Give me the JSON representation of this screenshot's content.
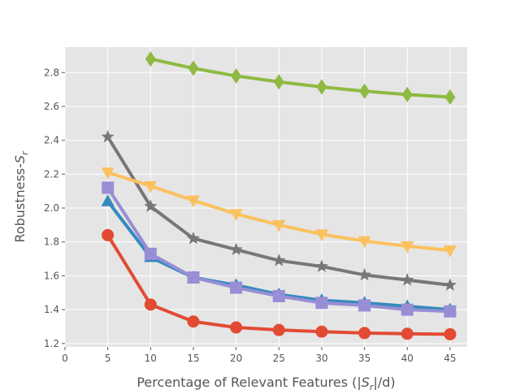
{
  "chart_data": {
    "type": "line",
    "title": "",
    "xlabel_prefix": "Percentage of Relevant Features (|",
    "xlabel_symbol": "S",
    "xlabel_sub": "r",
    "xlabel_suffix": "|/d)",
    "ylabel_prefix": "Robustness-",
    "ylabel_symbol": "S",
    "ylabel_sub": "r",
    "xlim": [
      0,
      47
    ],
    "ylim": [
      1.18,
      2.95
    ],
    "xticks": [
      0,
      5,
      10,
      15,
      20,
      25,
      30,
      35,
      40,
      45
    ],
    "yticks": [
      1.2,
      1.4,
      1.6,
      1.8,
      2.0,
      2.2,
      2.4,
      2.6,
      2.8
    ],
    "grid": true,
    "background": "#e5e5e5",
    "series": [
      {
        "color": "#e24a33",
        "marker": "circle",
        "x": [
          5,
          10,
          15,
          20,
          25,
          30,
          35,
          40,
          45
        ],
        "y": [
          1.84,
          1.43,
          1.33,
          1.295,
          1.28,
          1.27,
          1.262,
          1.258,
          1.255
        ]
      },
      {
        "color": "#348abd",
        "marker": "triangle-up",
        "x": [
          5,
          10,
          15,
          20,
          25,
          30,
          35,
          40,
          45
        ],
        "y": [
          2.04,
          1.71,
          1.59,
          1.545,
          1.49,
          1.455,
          1.44,
          1.42,
          1.4
        ]
      },
      {
        "color": "#988ed5",
        "marker": "square",
        "x": [
          5,
          10,
          15,
          20,
          25,
          30,
          35,
          40,
          45
        ],
        "y": [
          2.12,
          1.73,
          1.59,
          1.53,
          1.48,
          1.44,
          1.425,
          1.4,
          1.39
        ]
      },
      {
        "color": "#777777",
        "marker": "star",
        "x": [
          5,
          10,
          15,
          20,
          25,
          30,
          35,
          40,
          45
        ],
        "y": [
          2.42,
          2.01,
          1.82,
          1.755,
          1.69,
          1.655,
          1.605,
          1.575,
          1.545
        ]
      },
      {
        "color": "#fbc15e",
        "marker": "triangle-down",
        "x": [
          5,
          10,
          15,
          20,
          25,
          30,
          35,
          40,
          45
        ],
        "y": [
          2.21,
          2.13,
          2.045,
          1.965,
          1.9,
          1.845,
          1.805,
          1.775,
          1.75
        ]
      },
      {
        "color": "#8eba42",
        "marker": "diamond",
        "x": [
          10,
          15,
          20,
          25,
          30,
          35,
          40,
          45
        ],
        "y": [
          2.88,
          2.825,
          2.78,
          2.745,
          2.715,
          2.69,
          2.67,
          2.655
        ]
      }
    ]
  }
}
